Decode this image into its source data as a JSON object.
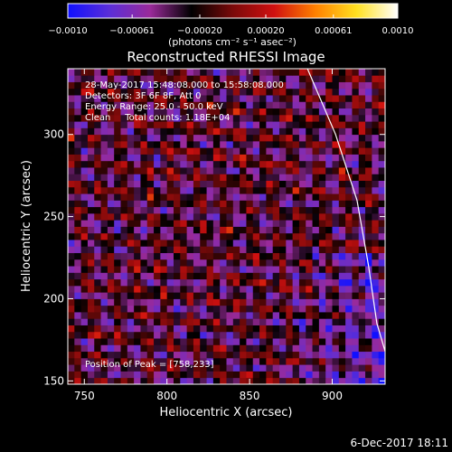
{
  "chart_data": {
    "type": "heatmap",
    "title": "Reconstructed RHESSI Image",
    "xlabel": "Heliocentric X (arcsec)",
    "ylabel": "Heliocentric Y (arcsec)",
    "xlim": [
      740,
      932
    ],
    "ylim": [
      148,
      340
    ],
    "x_ticks": [
      750,
      800,
      850,
      900
    ],
    "y_ticks": [
      150,
      200,
      250,
      300
    ],
    "colorbar": {
      "min": -0.001,
      "max": 0.001,
      "tick_labels": [
        "−0.0010",
        "−0.00061",
        "−0.00020",
        "0.00020",
        "0.00061",
        "0.0010"
      ],
      "tick_values": [
        -0.001,
        -0.00061,
        -0.0002,
        0.0002,
        0.00061,
        0.001
      ],
      "unit_label": "(photons cm⁻² s⁻¹ asec⁻²)",
      "colormap": [
        "#1010ff",
        "#5a2ed8",
        "#9a2a9a",
        "#000000",
        "#7a0a0a",
        "#d01010",
        "#ff8000",
        "#ffe020",
        "#ffffff"
      ]
    },
    "grid": {
      "x0": 740,
      "y0": 148,
      "cell": 4,
      "nx": 48,
      "ny": 48,
      "ridge_centers": [
        245,
        310,
        380,
        450
      ],
      "blob_spacing": 20,
      "peak": [
        758,
        233
      ]
    },
    "limb": [
      [
        885,
        340
      ],
      [
        902,
        300
      ],
      [
        915,
        260
      ],
      [
        922,
        220
      ],
      [
        927,
        185
      ],
      [
        932,
        168
      ]
    ],
    "annotations": [
      "28-May-2017 15:48:08.000 to 15:58:08.000",
      "Detectors: 3F 6F 8F, Att 0",
      "Energy Range: 25.0 - 50.0 keV",
      "Clean     Total counts: 1.18E+04"
    ],
    "peak_label": "Position of Peak = [758,233]"
  },
  "footer": {
    "timestamp": "6-Dec-2017 18:11"
  }
}
